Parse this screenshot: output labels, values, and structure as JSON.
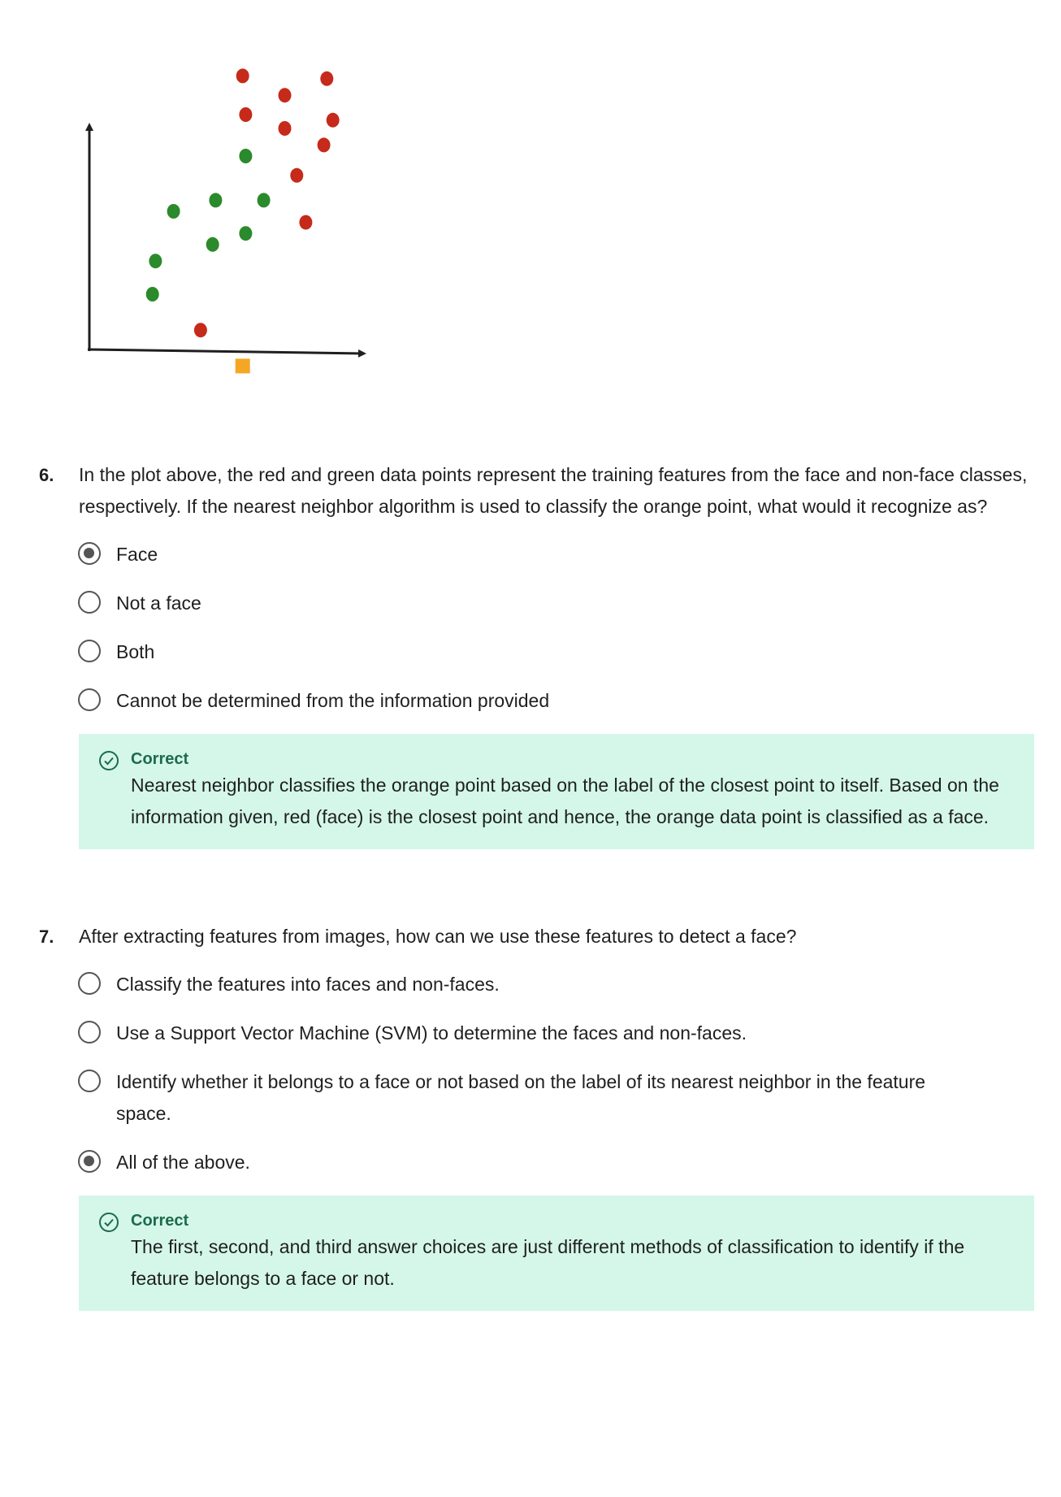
{
  "chart_data": {
    "type": "scatter",
    "title": "",
    "xlabel": "",
    "ylabel": "",
    "xlim": [
      0,
      10
    ],
    "ylim": [
      0,
      10
    ],
    "series": [
      {
        "color": "#c62a1a",
        "points": [
          [
            5.1,
            9.9
          ],
          [
            7.9,
            9.8
          ],
          [
            6.5,
            9.2
          ],
          [
            5.2,
            8.5
          ],
          [
            8.1,
            8.3
          ],
          [
            6.5,
            8.0
          ],
          [
            7.8,
            7.4
          ],
          [
            6.9,
            6.3
          ],
          [
            7.2,
            4.6
          ],
          [
            3.7,
            0.7
          ]
        ]
      },
      {
        "color": "#2b8a2b",
        "points": [
          [
            5.2,
            7.0
          ],
          [
            4.2,
            5.4
          ],
          [
            5.8,
            5.4
          ],
          [
            2.8,
            5.0
          ],
          [
            5.2,
            4.2
          ],
          [
            4.1,
            3.8
          ],
          [
            2.2,
            3.2
          ],
          [
            2.1,
            2.0
          ]
        ]
      }
    ],
    "query_point": {
      "color": "#f5a623",
      "x": 5.1,
      "y": -0.6
    }
  },
  "questions": [
    {
      "number": "6.",
      "text": "In the plot above, the red and green data points represent the training features from the face and non-face classes, respectively. If the nearest neighbor algorithm is used to classify the orange point, what would it recognize as?",
      "options": [
        "Face",
        "Not a face",
        "Both",
        "Cannot be determined from the information provided"
      ],
      "selected": 0,
      "feedback_title": "Correct",
      "feedback_text": "Nearest neighbor classifies the orange point based on the label of the closest point to itself. Based on the information given, red (face) is the closest point and hence, the orange data point is classified as a face."
    },
    {
      "number": "7.",
      "text": "After extracting features from images, how can we use these features to detect a face?",
      "options": [
        "Classify the features into faces and non-faces.",
        "Use a Support Vector Machine (SVM) to determine the faces and non-faces.",
        "Identify whether it belongs to a face or not based on the label of its nearest neighbor in the feature space.",
        "All of the above."
      ],
      "selected": 3,
      "feedback_title": "Correct",
      "feedback_text": "The first, second, and third answer choices are just different methods of classification to identify if the feature belongs to a face or not."
    }
  ]
}
